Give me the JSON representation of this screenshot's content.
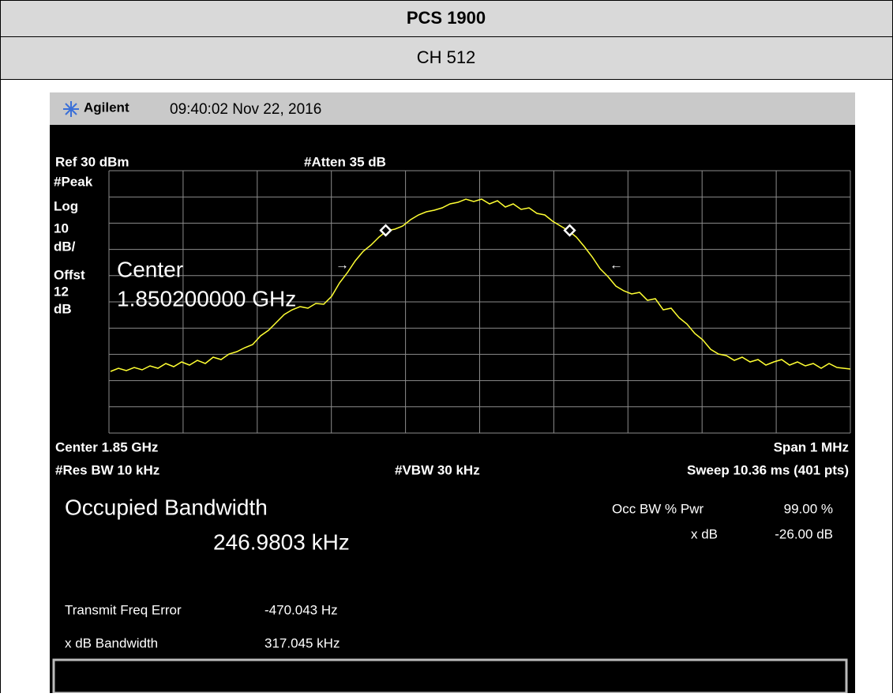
{
  "header": {
    "title": "PCS 1900",
    "channel": "CH 512"
  },
  "screen": {
    "brand": "Agilent",
    "timestamp": "09:40:02  Nov 22, 2016",
    "top_left": "Ref 30 dBm",
    "top_mid": "#Atten 35 dB",
    "side": [
      "#Peak",
      "Log",
      "10",
      "dB/",
      "Offst",
      "12",
      "dB"
    ],
    "center_label": "Center",
    "center_freq": "1.850200000 GHz",
    "arrow_left": "→",
    "arrow_right": "←",
    "center": "Center 1.85 GHz",
    "span": "Span 1 MHz",
    "res_bw": "#Res BW 10 kHz",
    "vbw": "#VBW 30 kHz",
    "sweep": "Sweep 10.36 ms (401 pts)",
    "occ_title": "Occupied Bandwidth",
    "occ_value": "246.9803 kHz",
    "occ_pwr_label": "Occ BW % Pwr",
    "occ_pwr_value": "99.00 %",
    "xdb_label": "x dB",
    "xdb_value": "-26.00 dB",
    "freq_err_label": "Transmit Freq Error",
    "freq_err_value": "-470.043 Hz",
    "xdb_bw_label": "x dB Bandwidth",
    "xdb_bw_value": "317.045 kHz"
  }
}
